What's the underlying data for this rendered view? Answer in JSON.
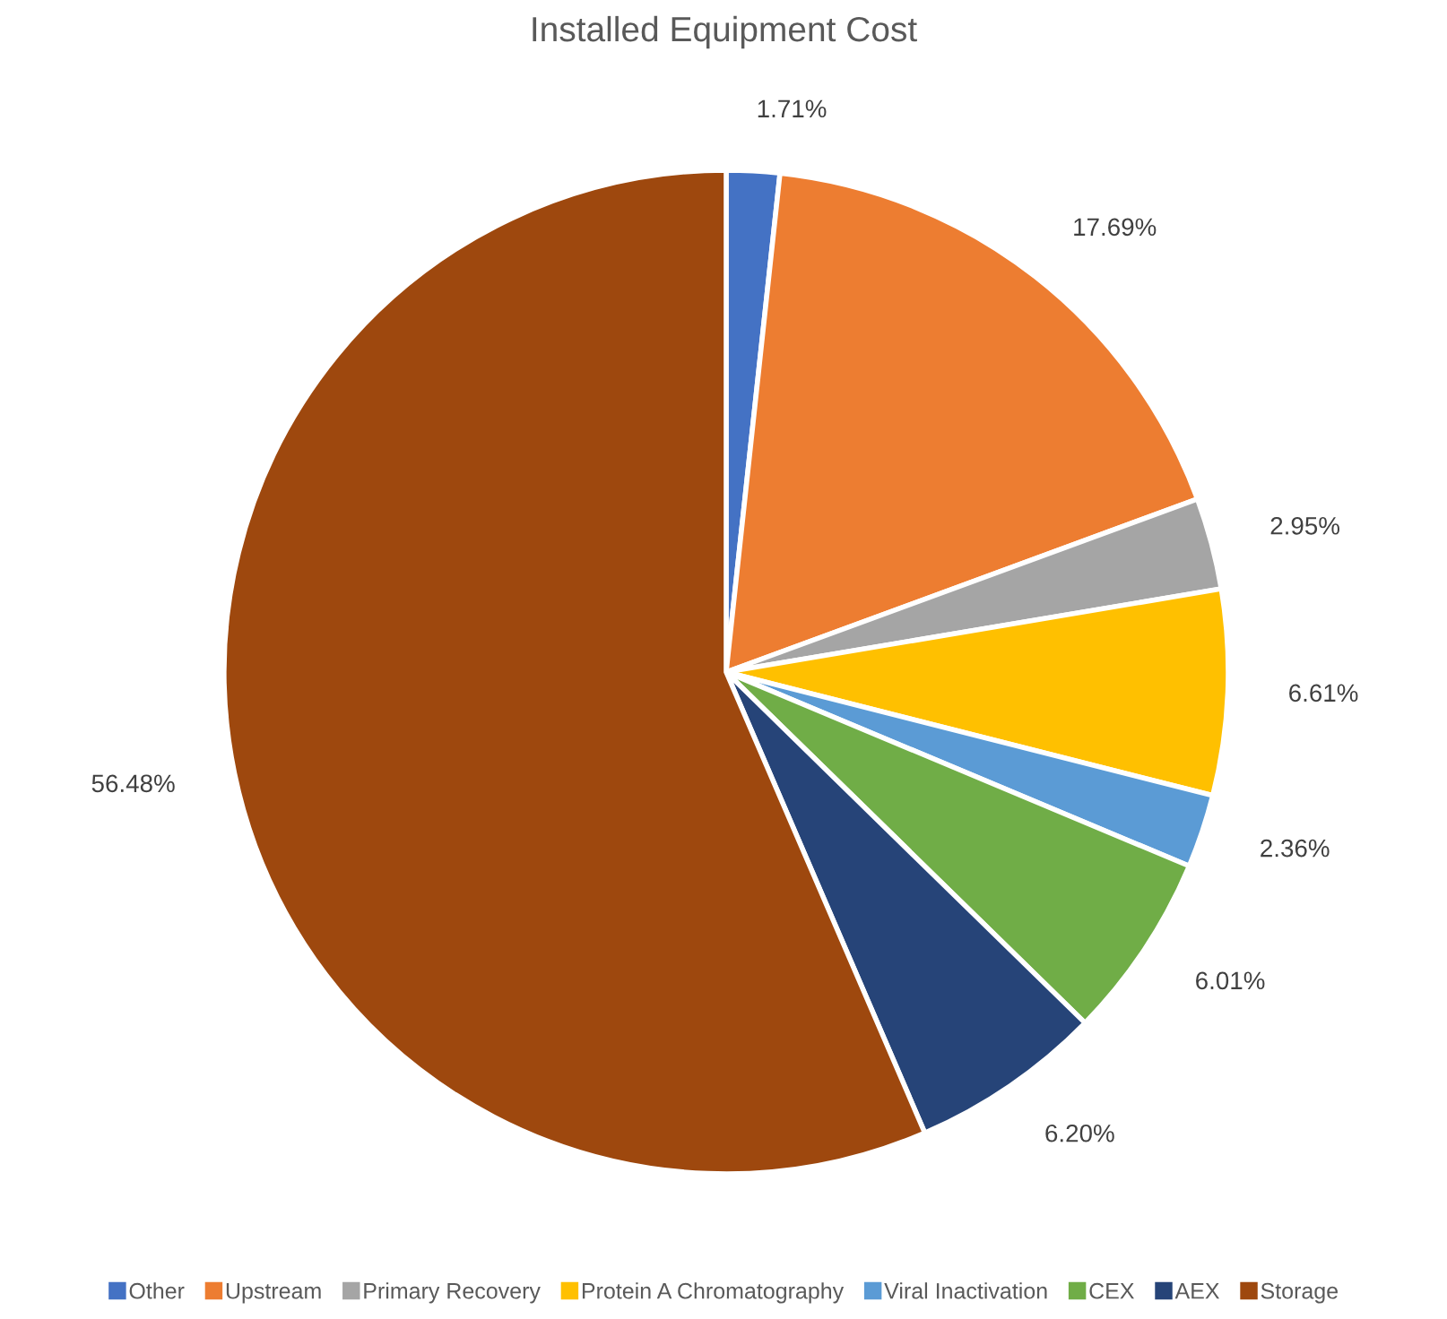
{
  "chart_data": {
    "type": "pie",
    "title": "Installed Equipment Cost",
    "categories": [
      "Other",
      "Upstream",
      "Primary Recovery",
      "Protein A Chromatography",
      "Viral Inactivation",
      "CEX",
      "AEX",
      "Storage"
    ],
    "values": [
      1.71,
      17.69,
      2.95,
      6.61,
      2.36,
      6.01,
      6.2,
      56.48
    ],
    "value_labels": [
      "1.71%",
      "17.69%",
      "2.95%",
      "6.61%",
      "2.36%",
      "6.01%",
      "6.20%",
      "56.48%"
    ],
    "colors": [
      "#4472c4",
      "#ed7d31",
      "#a5a5a5",
      "#ffc000",
      "#5b9bd5",
      "#70ad47",
      "#264478",
      "#9e480e"
    ],
    "legend": "bottom"
  }
}
